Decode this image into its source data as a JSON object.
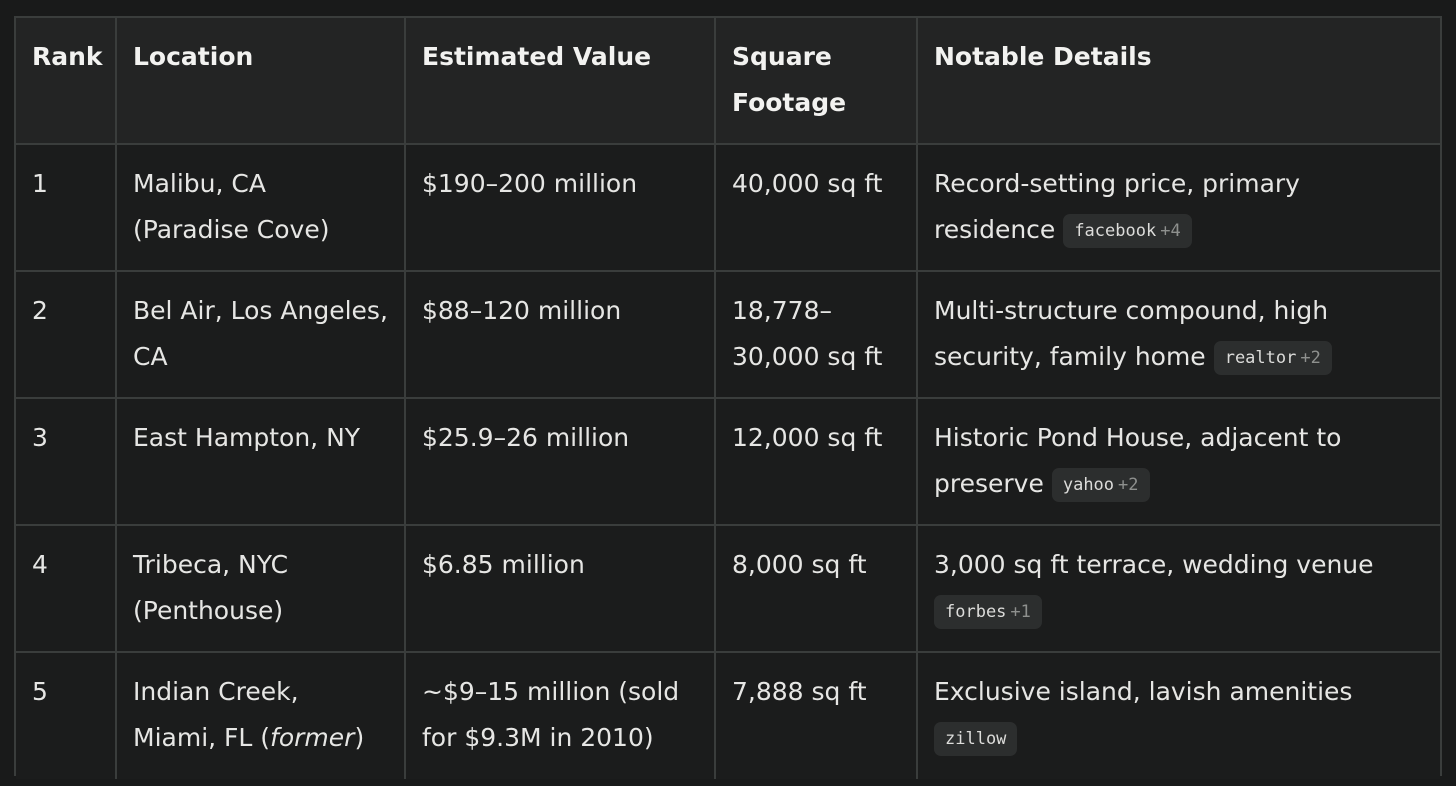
{
  "headers": {
    "rank": "Rank",
    "location": "Location",
    "value": "Estimated Value",
    "sqft": "Square Footage",
    "details": "Notable Details"
  },
  "rows": [
    {
      "rank": "1",
      "location": "Malibu, CA (Paradise Cove)",
      "value": "$190–200 million",
      "sqft": "40,000 sq ft",
      "details": "Record-setting price, primary residence",
      "source": "facebook",
      "source_more": "+4"
    },
    {
      "rank": "2",
      "location": "Bel Air, Los Angeles, CA",
      "value": "$88–120 million",
      "sqft": "18,778–30,000 sq ft",
      "details": "Multi-structure compound, high security, family home",
      "source": "realtor",
      "source_more": "+2"
    },
    {
      "rank": "3",
      "location": "East Hampton, NY",
      "value": "$25.9–26 million",
      "sqft": "12,000 sq ft",
      "details": "Historic Pond House, adjacent to preserve",
      "source": "yahoo",
      "source_more": "+2"
    },
    {
      "rank": "4",
      "location": "Tribeca, NYC (Penthouse)",
      "value": "$6.85 million",
      "sqft": "8,000 sq ft",
      "details": "3,000 sq ft terrace, wedding venue",
      "source": "forbes",
      "source_more": "+1"
    },
    {
      "rank": "5",
      "location": "Indian Creek, Miami, FL (",
      "location_em": "former",
      "location_tail": ")",
      "value": "~$9–15 million (sold for $9.3M in 2010)",
      "sqft": "7,888 sq ft",
      "details": "Exclusive island, lavish amenities",
      "source": "zillow",
      "source_more": ""
    }
  ]
}
